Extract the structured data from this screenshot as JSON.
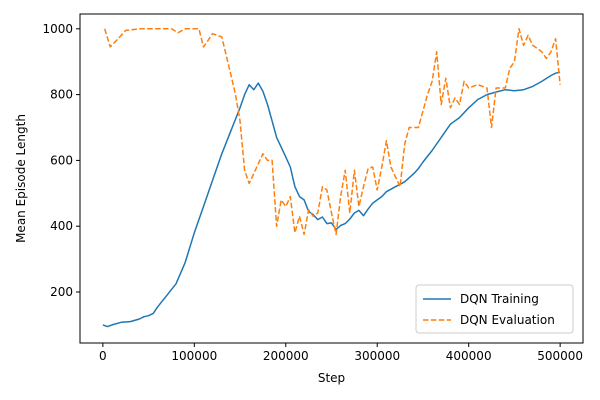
{
  "chart_data": {
    "type": "line",
    "title": "",
    "xlabel": "Step",
    "ylabel": "Mean Episode Length",
    "xlim": [
      -25000,
      525000
    ],
    "ylim": [
      45,
      1045
    ],
    "xticks": [
      0,
      100000,
      200000,
      300000,
      400000,
      500000
    ],
    "xtick_labels": [
      "0",
      "100000",
      "200000",
      "300000",
      "400000",
      "500000"
    ],
    "yticks": [
      200,
      400,
      600,
      800,
      1000
    ],
    "ytick_labels": [
      "200",
      "400",
      "600",
      "800",
      "1000"
    ],
    "grid": false,
    "legend_position": "lower-right",
    "series": [
      {
        "name": "DQN Training",
        "color": "#1f77b4",
        "style": "solid",
        "points": [
          [
            0,
            100
          ],
          [
            5000,
            95
          ],
          [
            10000,
            100
          ],
          [
            20000,
            108
          ],
          [
            30000,
            110
          ],
          [
            40000,
            118
          ],
          [
            45000,
            125
          ],
          [
            50000,
            128
          ],
          [
            55000,
            135
          ],
          [
            60000,
            155
          ],
          [
            70000,
            190
          ],
          [
            80000,
            225
          ],
          [
            90000,
            290
          ],
          [
            100000,
            380
          ],
          [
            110000,
            460
          ],
          [
            120000,
            540
          ],
          [
            130000,
            620
          ],
          [
            140000,
            690
          ],
          [
            150000,
            760
          ],
          [
            155000,
            800
          ],
          [
            160000,
            830
          ],
          [
            165000,
            815
          ],
          [
            170000,
            835
          ],
          [
            175000,
            810
          ],
          [
            180000,
            770
          ],
          [
            185000,
            720
          ],
          [
            190000,
            670
          ],
          [
            195000,
            640
          ],
          [
            200000,
            610
          ],
          [
            205000,
            580
          ],
          [
            210000,
            520
          ],
          [
            215000,
            490
          ],
          [
            220000,
            480
          ],
          [
            225000,
            445
          ],
          [
            230000,
            435
          ],
          [
            235000,
            420
          ],
          [
            240000,
            428
          ],
          [
            245000,
            408
          ],
          [
            250000,
            410
          ],
          [
            255000,
            390
          ],
          [
            260000,
            402
          ],
          [
            265000,
            408
          ],
          [
            270000,
            422
          ],
          [
            275000,
            440
          ],
          [
            280000,
            448
          ],
          [
            285000,
            432
          ],
          [
            290000,
            452
          ],
          [
            295000,
            470
          ],
          [
            300000,
            480
          ],
          [
            305000,
            490
          ],
          [
            310000,
            505
          ],
          [
            320000,
            520
          ],
          [
            330000,
            535
          ],
          [
            340000,
            560
          ],
          [
            345000,
            575
          ],
          [
            350000,
            595
          ],
          [
            360000,
            630
          ],
          [
            370000,
            670
          ],
          [
            380000,
            710
          ],
          [
            390000,
            730
          ],
          [
            400000,
            760
          ],
          [
            410000,
            785
          ],
          [
            420000,
            800
          ],
          [
            430000,
            808
          ],
          [
            440000,
            815
          ],
          [
            450000,
            812
          ],
          [
            460000,
            815
          ],
          [
            470000,
            825
          ],
          [
            480000,
            840
          ],
          [
            490000,
            858
          ],
          [
            495000,
            865
          ],
          [
            500000,
            868
          ]
        ]
      },
      {
        "name": "DQN Evaluation",
        "color": "#ff7f0e",
        "style": "dashed",
        "points": [
          [
            2000,
            1000
          ],
          [
            8000,
            945
          ],
          [
            15000,
            965
          ],
          [
            25000,
            995
          ],
          [
            40000,
            1000
          ],
          [
            60000,
            1000
          ],
          [
            75000,
            1000
          ],
          [
            82000,
            988
          ],
          [
            90000,
            1000
          ],
          [
            100000,
            1000
          ],
          [
            105000,
            1000
          ],
          [
            110000,
            945
          ],
          [
            120000,
            985
          ],
          [
            130000,
            975
          ],
          [
            140000,
            860
          ],
          [
            145000,
            800
          ],
          [
            150000,
            720
          ],
          [
            155000,
            570
          ],
          [
            160000,
            530
          ],
          [
            165000,
            560
          ],
          [
            170000,
            590
          ],
          [
            175000,
            620
          ],
          [
            180000,
            600
          ],
          [
            185000,
            600
          ],
          [
            190000,
            400
          ],
          [
            195000,
            480
          ],
          [
            200000,
            460
          ],
          [
            205000,
            490
          ],
          [
            210000,
            380
          ],
          [
            215000,
            430
          ],
          [
            220000,
            375
          ],
          [
            225000,
            450
          ],
          [
            230000,
            430
          ],
          [
            235000,
            440
          ],
          [
            240000,
            520
          ],
          [
            245000,
            510
          ],
          [
            250000,
            440
          ],
          [
            255000,
            375
          ],
          [
            260000,
            490
          ],
          [
            265000,
            570
          ],
          [
            270000,
            440
          ],
          [
            275000,
            570
          ],
          [
            280000,
            460
          ],
          [
            285000,
            520
          ],
          [
            290000,
            575
          ],
          [
            295000,
            580
          ],
          [
            300000,
            510
          ],
          [
            305000,
            580
          ],
          [
            310000,
            660
          ],
          [
            315000,
            580
          ],
          [
            320000,
            550
          ],
          [
            325000,
            520
          ],
          [
            330000,
            650
          ],
          [
            335000,
            700
          ],
          [
            345000,
            700
          ],
          [
            355000,
            800
          ],
          [
            360000,
            840
          ],
          [
            365000,
            930
          ],
          [
            370000,
            770
          ],
          [
            375000,
            850
          ],
          [
            380000,
            760
          ],
          [
            385000,
            790
          ],
          [
            390000,
            770
          ],
          [
            395000,
            840
          ],
          [
            400000,
            820
          ],
          [
            410000,
            830
          ],
          [
            420000,
            820
          ],
          [
            425000,
            700
          ],
          [
            430000,
            820
          ],
          [
            440000,
            820
          ],
          [
            445000,
            880
          ],
          [
            450000,
            900
          ],
          [
            455000,
            1000
          ],
          [
            460000,
            950
          ],
          [
            465000,
            980
          ],
          [
            470000,
            950
          ],
          [
            475000,
            940
          ],
          [
            480000,
            930
          ],
          [
            485000,
            910
          ],
          [
            490000,
            930
          ],
          [
            495000,
            970
          ],
          [
            500000,
            830
          ]
        ]
      }
    ]
  }
}
